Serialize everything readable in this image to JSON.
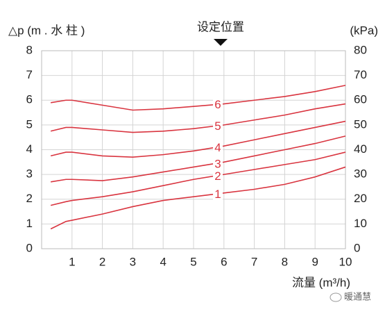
{
  "chart_data": {
    "type": "line",
    "annotation": "设定位置",
    "ylabel": "△p (m . 水 柱 )",
    "y2label": "(kPa)",
    "xlabel": "流量 (m³/h)",
    "watermark": "暖通慧",
    "x": [
      0.3,
      0.8,
      1,
      2,
      3,
      4,
      5,
      6,
      7,
      8,
      9,
      10
    ],
    "series": [
      {
        "name": "1",
        "color": "#d9343f",
        "values": [
          0.8,
          1.1,
          1.15,
          1.4,
          1.7,
          1.95,
          2.1,
          2.25,
          2.4,
          2.6,
          2.9,
          3.3
        ]
      },
      {
        "name": "2",
        "color": "#d9343f",
        "values": [
          1.75,
          1.9,
          1.95,
          2.1,
          2.3,
          2.55,
          2.8,
          3.0,
          3.2,
          3.4,
          3.6,
          3.9
        ]
      },
      {
        "name": "3",
        "color": "#d9343f",
        "values": [
          2.7,
          2.8,
          2.8,
          2.75,
          2.9,
          3.1,
          3.3,
          3.5,
          3.75,
          4.0,
          4.25,
          4.55
        ]
      },
      {
        "name": "4",
        "color": "#d9343f",
        "values": [
          3.75,
          3.9,
          3.9,
          3.75,
          3.7,
          3.8,
          3.95,
          4.15,
          4.4,
          4.65,
          4.9,
          5.15
        ]
      },
      {
        "name": "5",
        "color": "#d9343f",
        "values": [
          4.75,
          4.9,
          4.9,
          4.8,
          4.7,
          4.75,
          4.85,
          5.0,
          5.2,
          5.4,
          5.65,
          5.85
        ]
      },
      {
        "name": "6",
        "color": "#d9343f",
        "values": [
          5.9,
          6.0,
          6.0,
          5.8,
          5.6,
          5.65,
          5.75,
          5.85,
          6.0,
          6.15,
          6.35,
          6.6
        ]
      }
    ],
    "xlim": [
      0,
      10
    ],
    "xticks": [
      1,
      2,
      3,
      4,
      5,
      6,
      7,
      8,
      9,
      10
    ],
    "ylim": [
      0,
      8
    ],
    "yticks": [
      0,
      1,
      2,
      3,
      4,
      5,
      6,
      7,
      8
    ],
    "y2lim": [
      0,
      80
    ],
    "y2ticks": [
      0,
      10,
      20,
      30,
      40,
      50,
      60,
      70,
      80
    ],
    "grid": true
  }
}
